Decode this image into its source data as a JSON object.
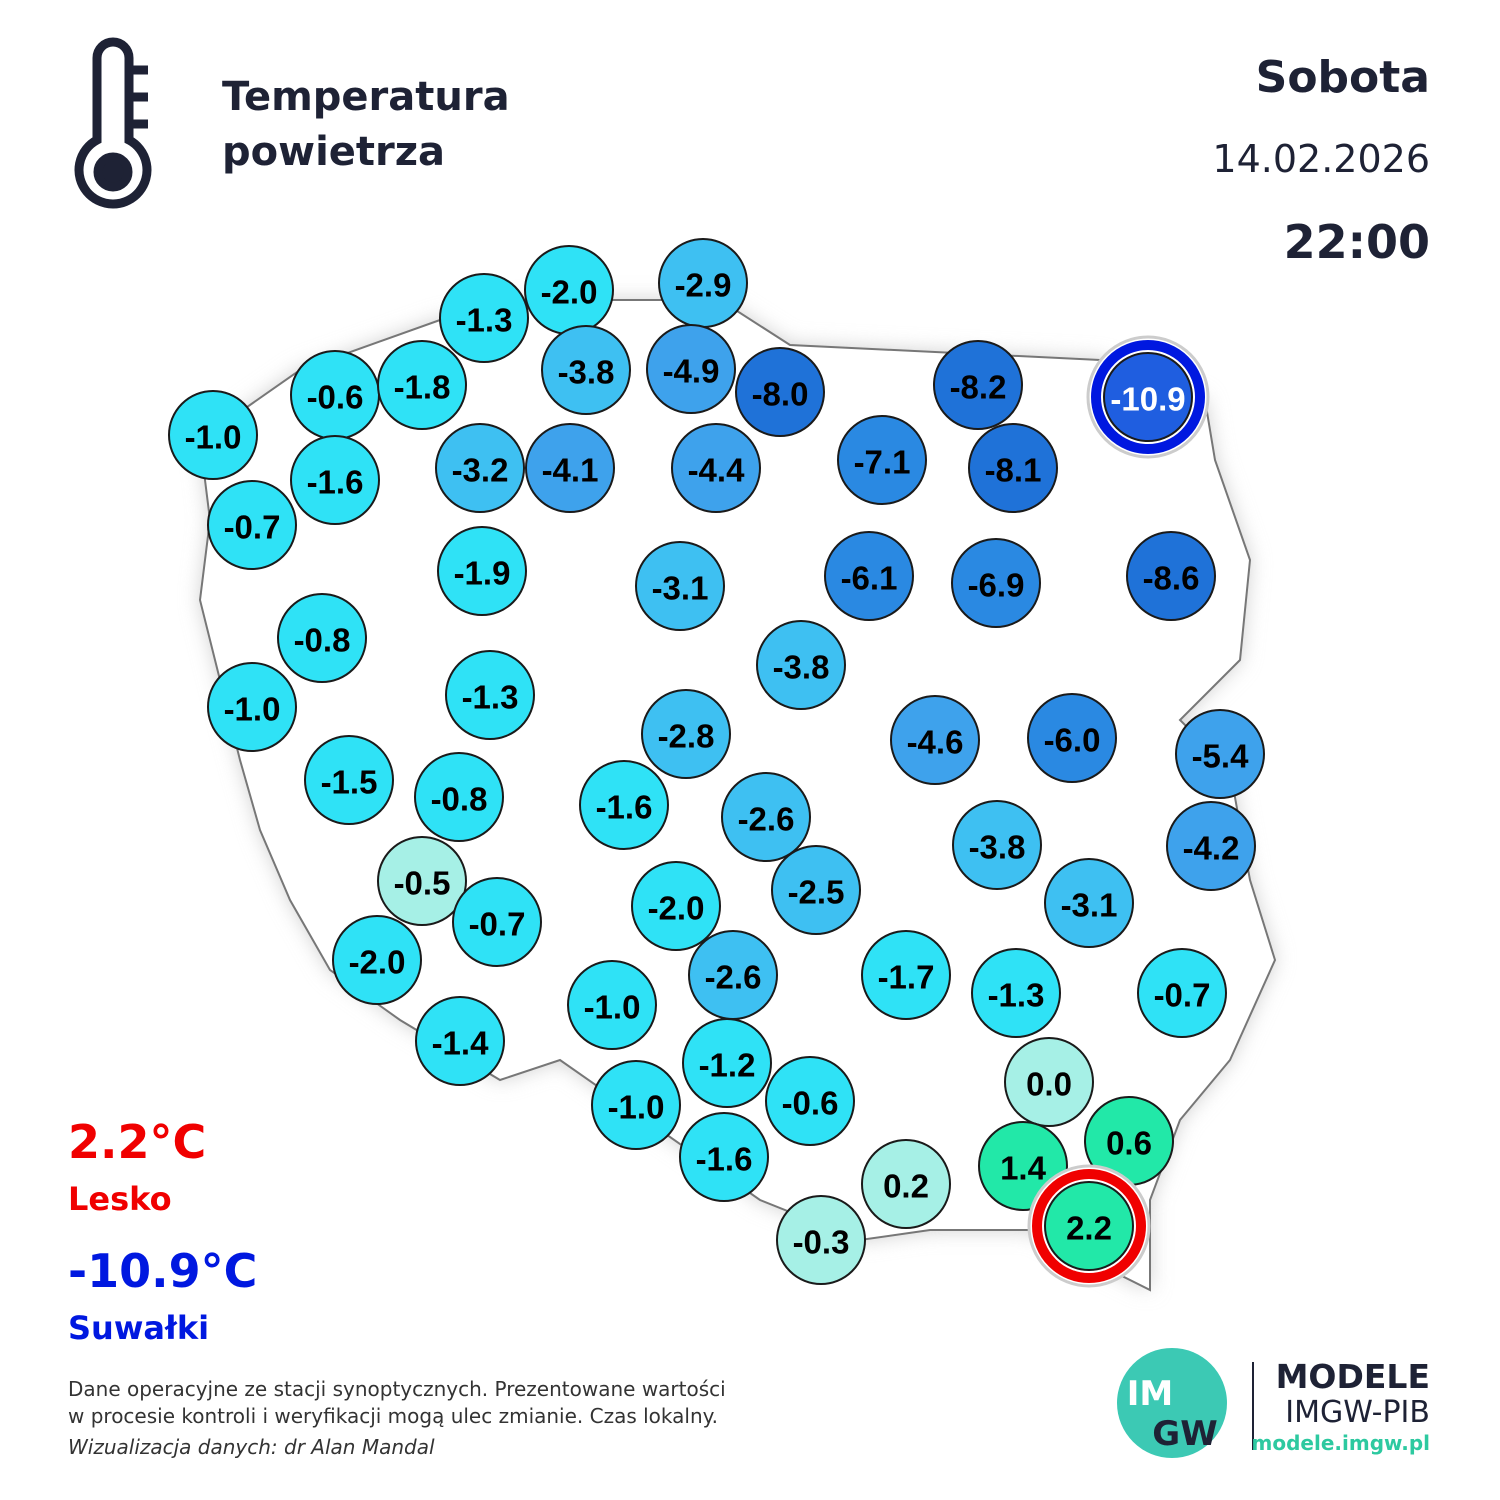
{
  "header": {
    "title_lines": [
      "Temperatura",
      "powietrza"
    ],
    "day": "Sobota",
    "date": "14.02.2026",
    "time": "22:00"
  },
  "extremes": {
    "max": {
      "value": "2.2°C",
      "station": "Lesko"
    },
    "min": {
      "value": "-10.9°C",
      "station": "Suwałki"
    }
  },
  "stations": [
    "-1.0",
    "-0.6",
    "-1.8",
    "-1.3",
    "-2.0",
    "-2.9",
    "-3.8",
    "-4.9",
    "-8.0",
    "-8.2",
    "-10.9",
    "-0.7",
    "-1.6",
    "-3.2",
    "-4.1",
    "-4.4",
    "-7.1",
    "-8.1",
    "-1.9",
    "-3.1",
    "-6.1",
    "-6.9",
    "-8.6",
    "-0.8",
    "-1.0",
    "-1.3",
    "-3.8",
    "-2.8",
    "-4.6",
    "-6.0",
    "-5.4",
    "-1.5",
    "-0.8",
    "-1.6",
    "-2.6",
    "-3.8",
    "-4.2",
    "-0.5",
    "-0.7",
    "-2.0",
    "-2.5",
    "-3.1",
    "-2.0",
    "-2.6",
    "-1.7",
    "-1.3",
    "-0.7",
    "-1.0",
    "-1.4",
    "-1.2",
    "0.0",
    "-0.6",
    "-1.0",
    "0.6",
    "1.4",
    "-1.6",
    "0.2",
    "-0.3",
    "2.2"
  ],
  "footer": {
    "notes": [
      "Dane operacyjne ze stacji synoptycznych. Prezentowane wartości",
      "w procesie kontroli i weryfikacji mogą ulec zmianie. Czas lokalny."
    ],
    "credit": "Wizualizacja danych: dr Alan Mandal"
  },
  "logo": {
    "top": "IM",
    "bottom": "GW",
    "brand": "MODELE",
    "org": "IMGW-PIB",
    "url": "modele.imgw.pl"
  }
}
